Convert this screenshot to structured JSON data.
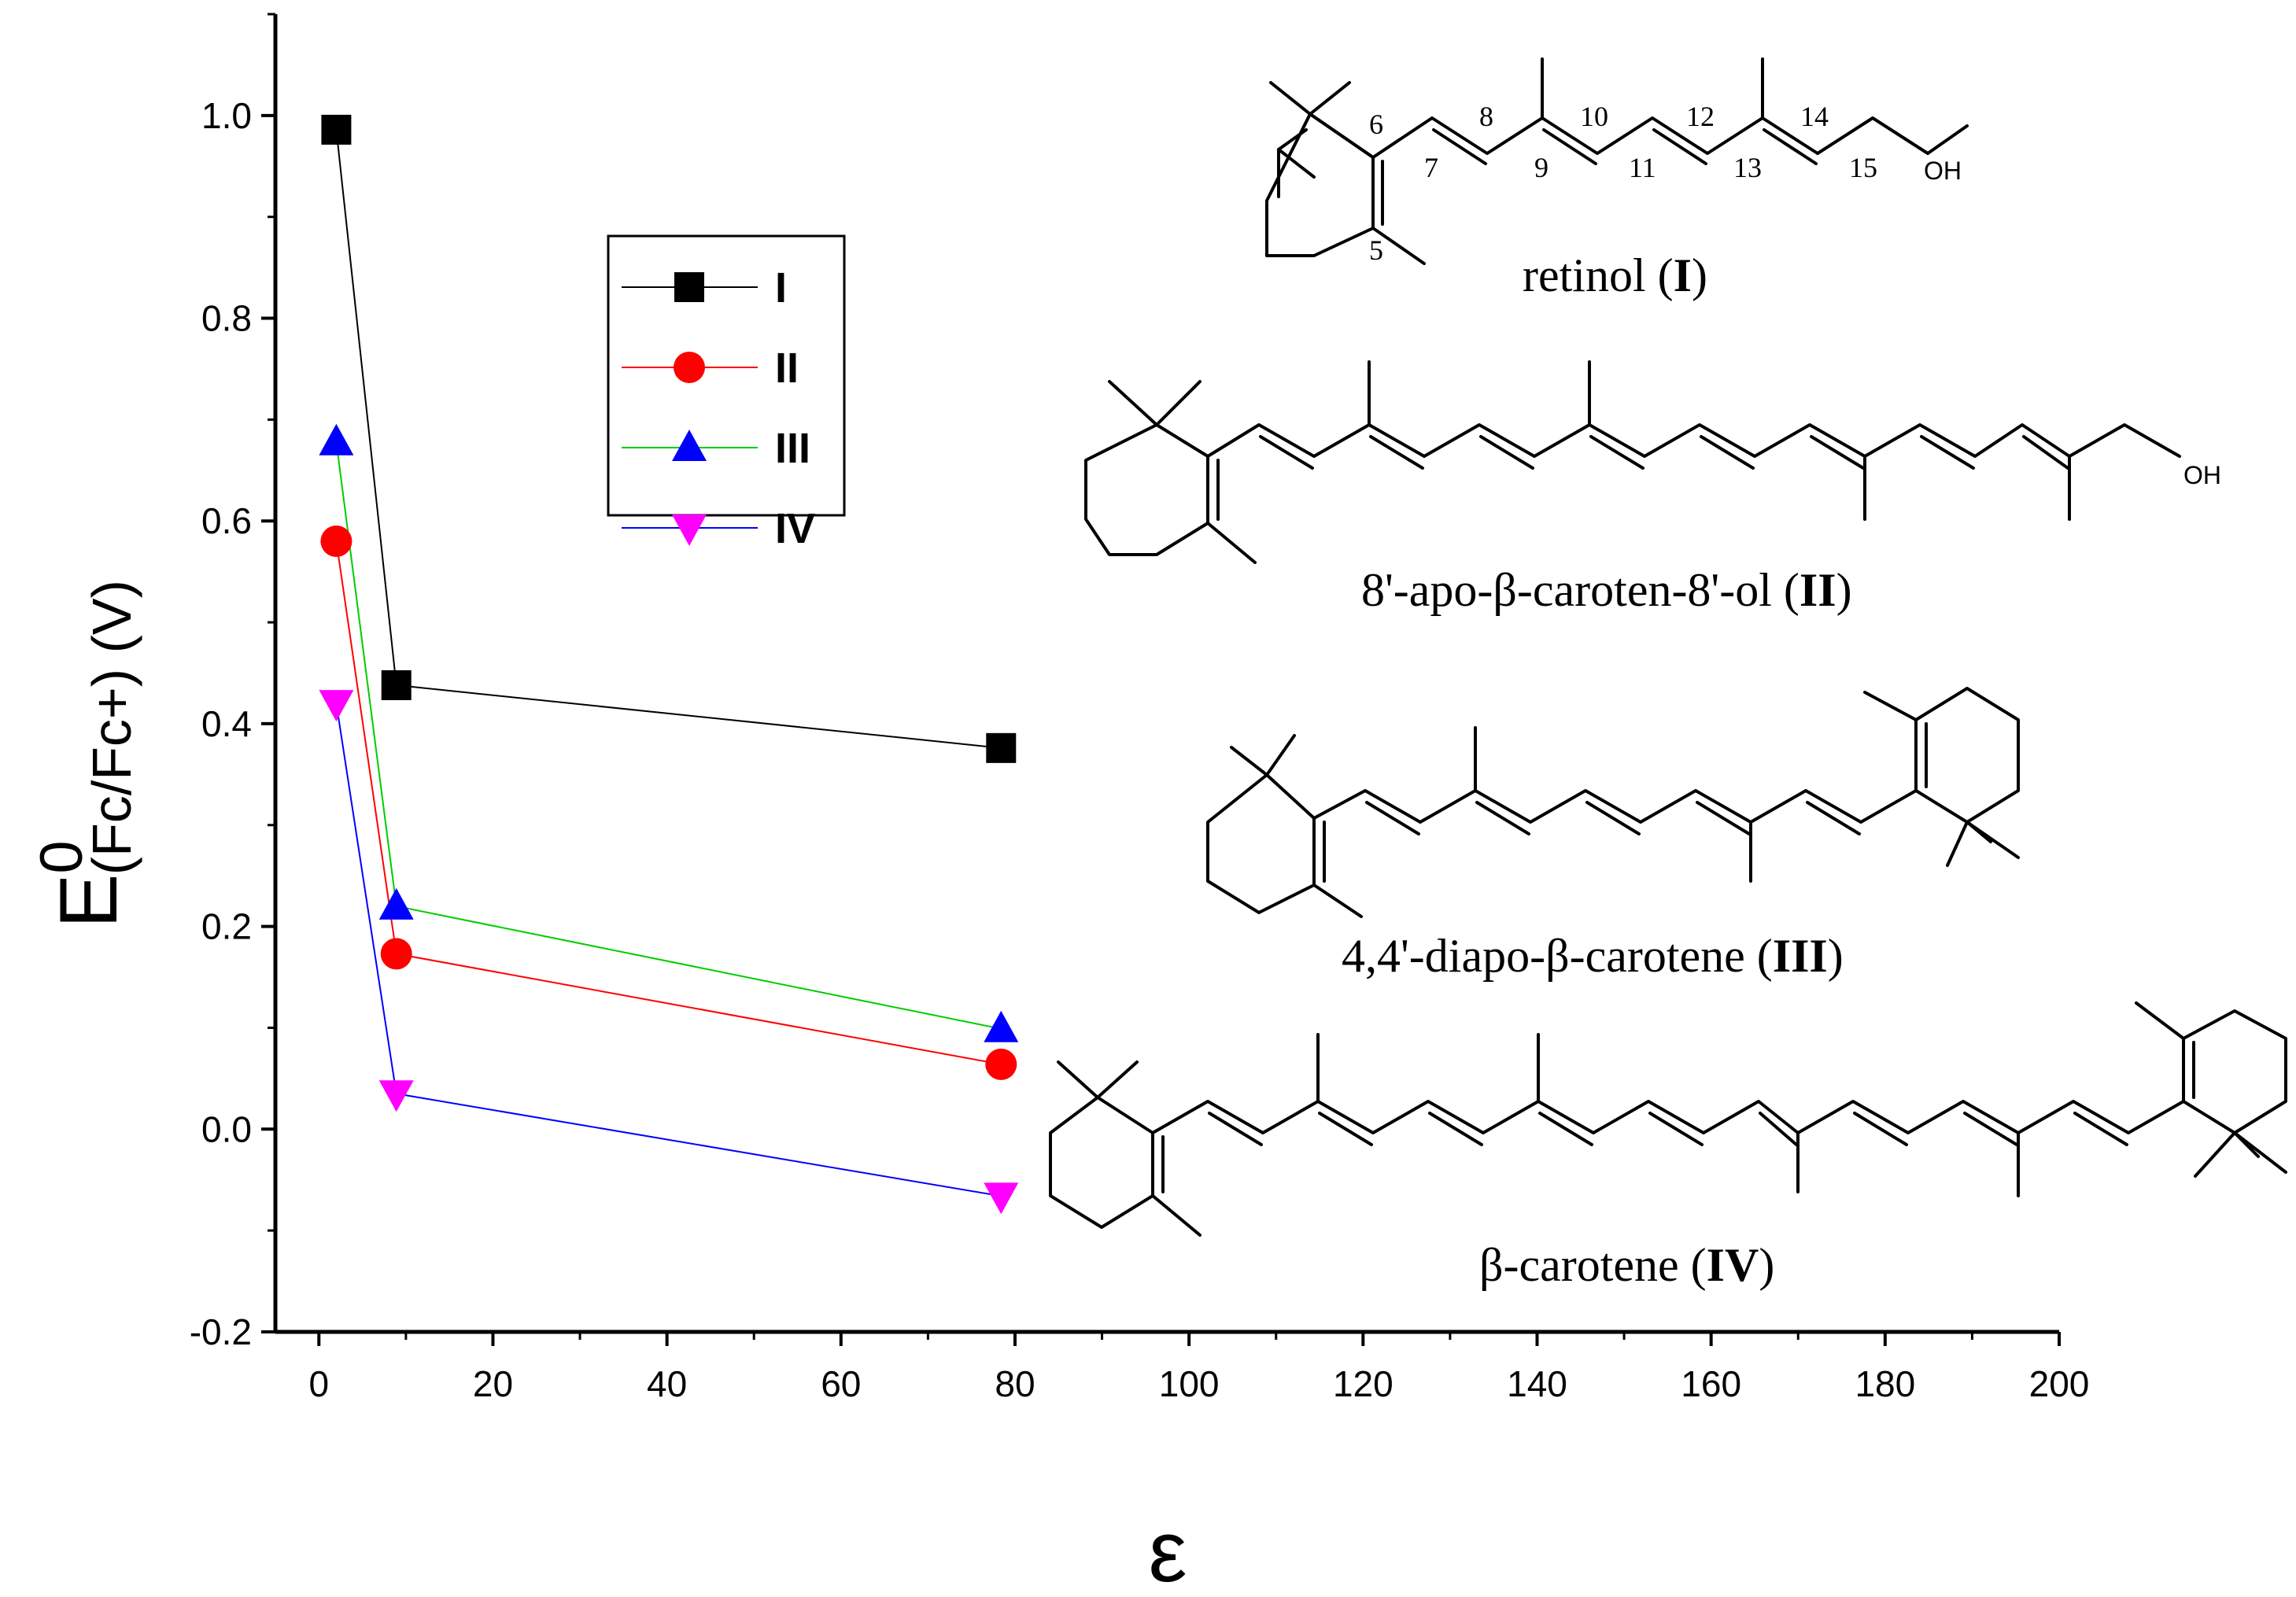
{
  "chart_data": {
    "type": "line",
    "xlabel": "ε",
    "ylabel_main": "E",
    "ylabel_sup": "0",
    "ylabel_sub": "(Fc/Fc+) (V)",
    "xlim": [
      -5,
      200
    ],
    "ylim": [
      -0.2,
      1.1
    ],
    "x_ticks": [
      "0",
      "20",
      "40",
      "60",
      "80",
      "100",
      "120",
      "140",
      "160",
      "180",
      "200"
    ],
    "y_ticks": [
      "-0.2",
      "0.0",
      "0.2",
      "0.4",
      "0.6",
      "0.8",
      "1.0"
    ],
    "legend_position": "upper-left",
    "series": [
      {
        "name": "I",
        "color": "#000000",
        "marker": "square",
        "x": [
          2.0,
          8.9,
          78.4
        ],
        "y": [
          0.986,
          0.438,
          0.376
        ]
      },
      {
        "name": "II",
        "color": "#ff0000",
        "marker": "circle",
        "x": [
          2.0,
          8.9,
          78.4
        ],
        "y": [
          0.58,
          0.173,
          0.064
        ]
      },
      {
        "name": "III",
        "color": "#00cc00",
        "marker_color": "#0000ff",
        "marker": "triangle-up",
        "x": [
          2.0,
          8.9,
          78.4
        ],
        "y": [
          0.678,
          0.22,
          0.099
        ]
      },
      {
        "name": "IV",
        "color": "#0000ff",
        "marker_color": "#ff00ff",
        "marker": "triangle-down",
        "x": [
          2.0,
          8.9,
          78.4
        ],
        "y": [
          0.42,
          0.035,
          -0.066
        ]
      }
    ],
    "annotations": {
      "retinol": "retinol (",
      "retinol_id": "I",
      "apo": "8'-apo-β-caroten-8'-ol (",
      "apo_id": "II",
      "diapo": "4,4'-diapo-β-carotene (",
      "diapo_id": "III",
      "beta": "β-carotene (",
      "beta_id": "IV",
      "close": ")",
      "oh": "OH",
      "retinol_numbers": [
        "5",
        "6",
        "7",
        "8",
        "9",
        "10",
        "11",
        "12",
        "13",
        "14",
        "15"
      ]
    }
  }
}
